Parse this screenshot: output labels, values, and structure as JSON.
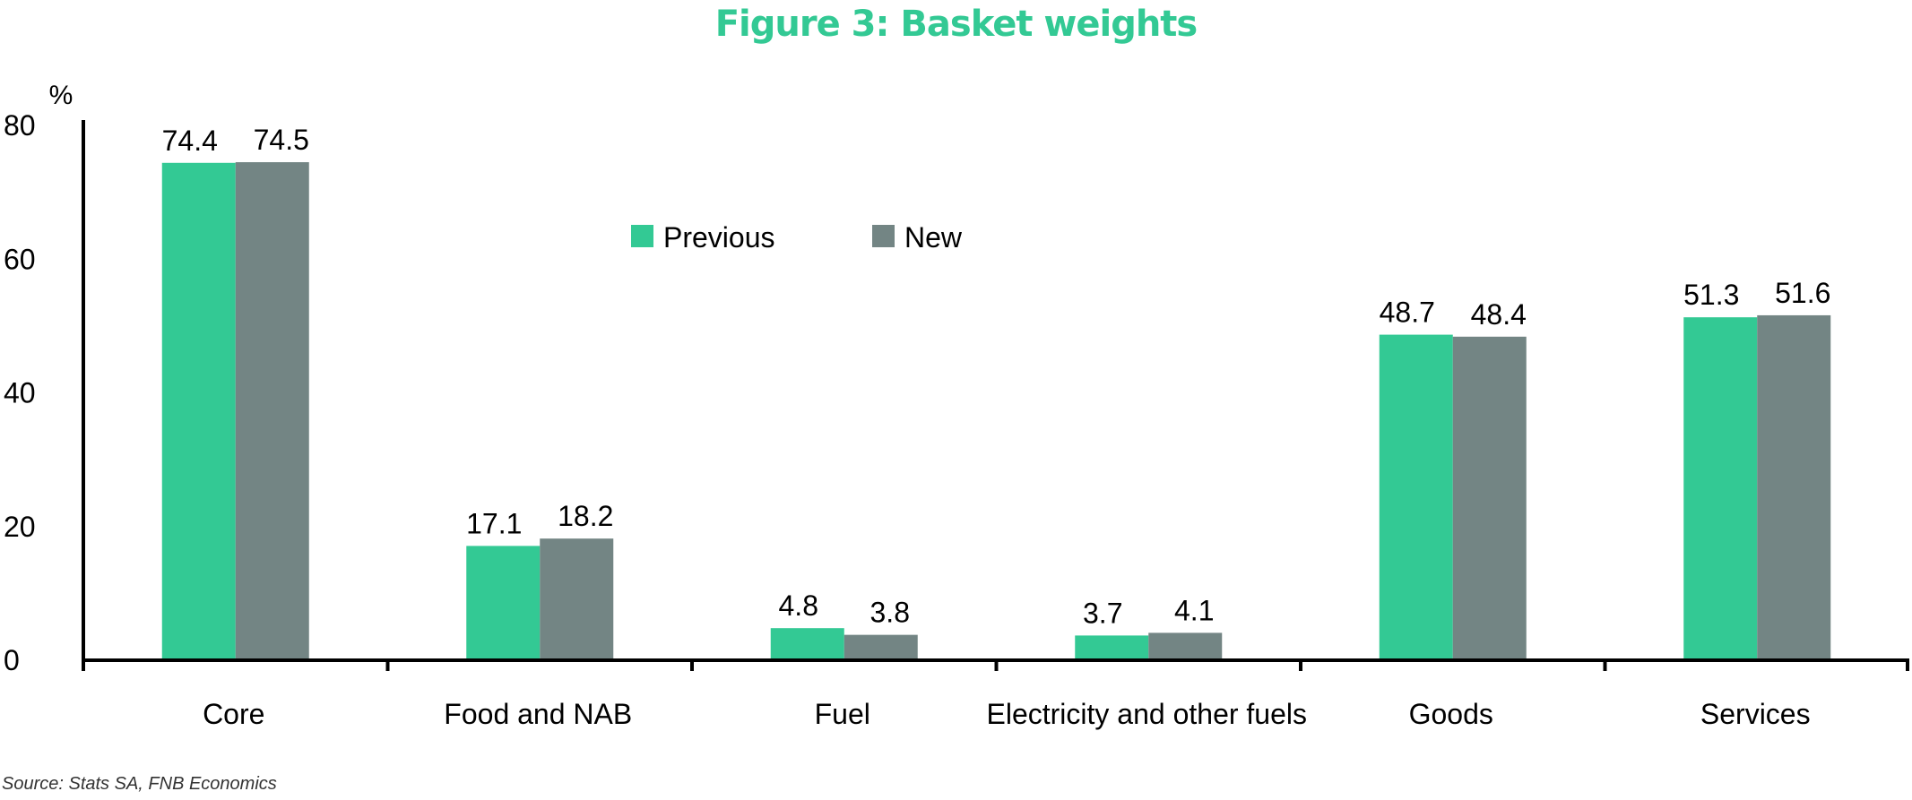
{
  "chart_data": {
    "type": "bar",
    "title": "Figure 3: Basket weights",
    "ylabel": "%",
    "xlabel": "",
    "ylim": [
      0,
      80
    ],
    "yticks": [
      0,
      20,
      40,
      60,
      80
    ],
    "grid": false,
    "legend_position": "top-center",
    "categories": [
      "Core",
      "Food and NAB",
      "Fuel",
      "Electricity and other fuels",
      "Goods",
      "Services"
    ],
    "series": [
      {
        "name": "Previous",
        "color": "#33c994",
        "values": [
          74.4,
          17.1,
          4.8,
          3.7,
          48.7,
          51.3
        ]
      },
      {
        "name": "New",
        "color": "#738584",
        "values": [
          74.5,
          18.2,
          3.8,
          4.1,
          48.4,
          51.6
        ]
      }
    ],
    "data_labels": [
      [
        "74.4",
        "17.1",
        "4.8",
        "3.7",
        "48.7",
        "51.3"
      ],
      [
        "74.5",
        "18.2",
        "3.8",
        "4.1",
        "48.4",
        "51.6"
      ]
    ]
  },
  "source": "Source: Stats SA, FNB Economics",
  "colors": {
    "title": "#33c994",
    "axis": "#000000"
  }
}
